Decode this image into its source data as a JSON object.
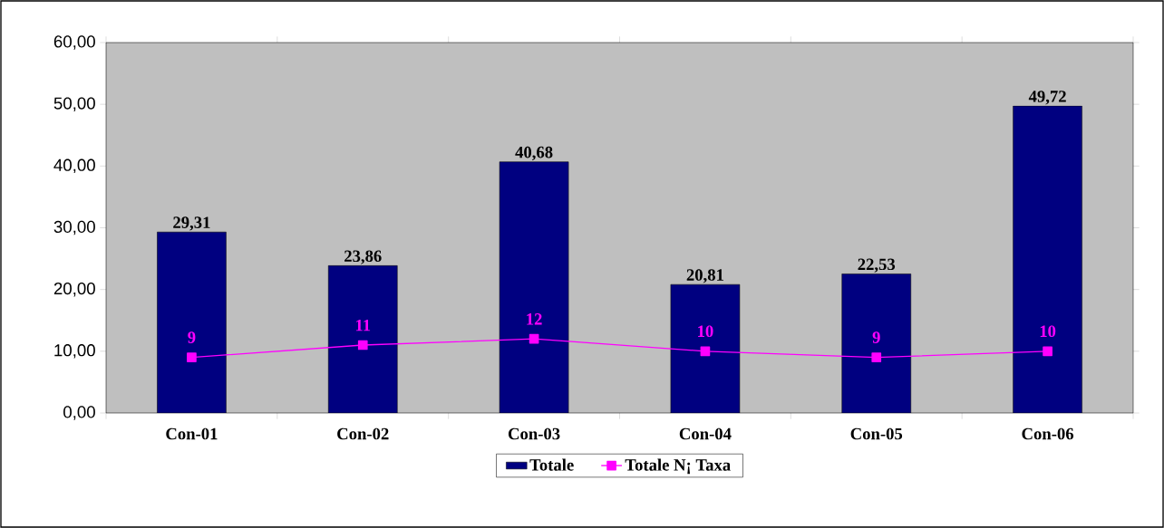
{
  "chart_data": {
    "type": "bar",
    "categories": [
      "Con-01",
      "Con-02",
      "Con-03",
      "Con-04",
      "Con-05",
      "Con-06"
    ],
    "ylim": [
      0,
      60
    ],
    "yticks": [
      {
        "value": 0,
        "label": "0,00"
      },
      {
        "value": 10,
        "label": "10,00"
      },
      {
        "value": 20,
        "label": "20,00"
      },
      {
        "value": 30,
        "label": "30,00"
      },
      {
        "value": 40,
        "label": "40,00"
      },
      {
        "value": 50,
        "label": "50,00"
      },
      {
        "value": 60,
        "label": "60,00"
      }
    ],
    "legend": "bottom",
    "marker": "square",
    "series": [
      {
        "name": "Totale",
        "color": "#000080",
        "values": [
          29.31,
          23.86,
          40.68,
          20.81,
          22.53,
          49.72
        ],
        "value_labels": [
          "29,31",
          "23,86",
          "40,68",
          "20,81",
          "22,53",
          "49,72"
        ]
      },
      {
        "name": "Totale N¡ Taxa",
        "type": "line",
        "color": "#ff00ff",
        "values": [
          9,
          11,
          12,
          10,
          9,
          10
        ],
        "value_labels": [
          "9",
          "11",
          "12",
          "10",
          "9",
          "10"
        ]
      }
    ]
  }
}
